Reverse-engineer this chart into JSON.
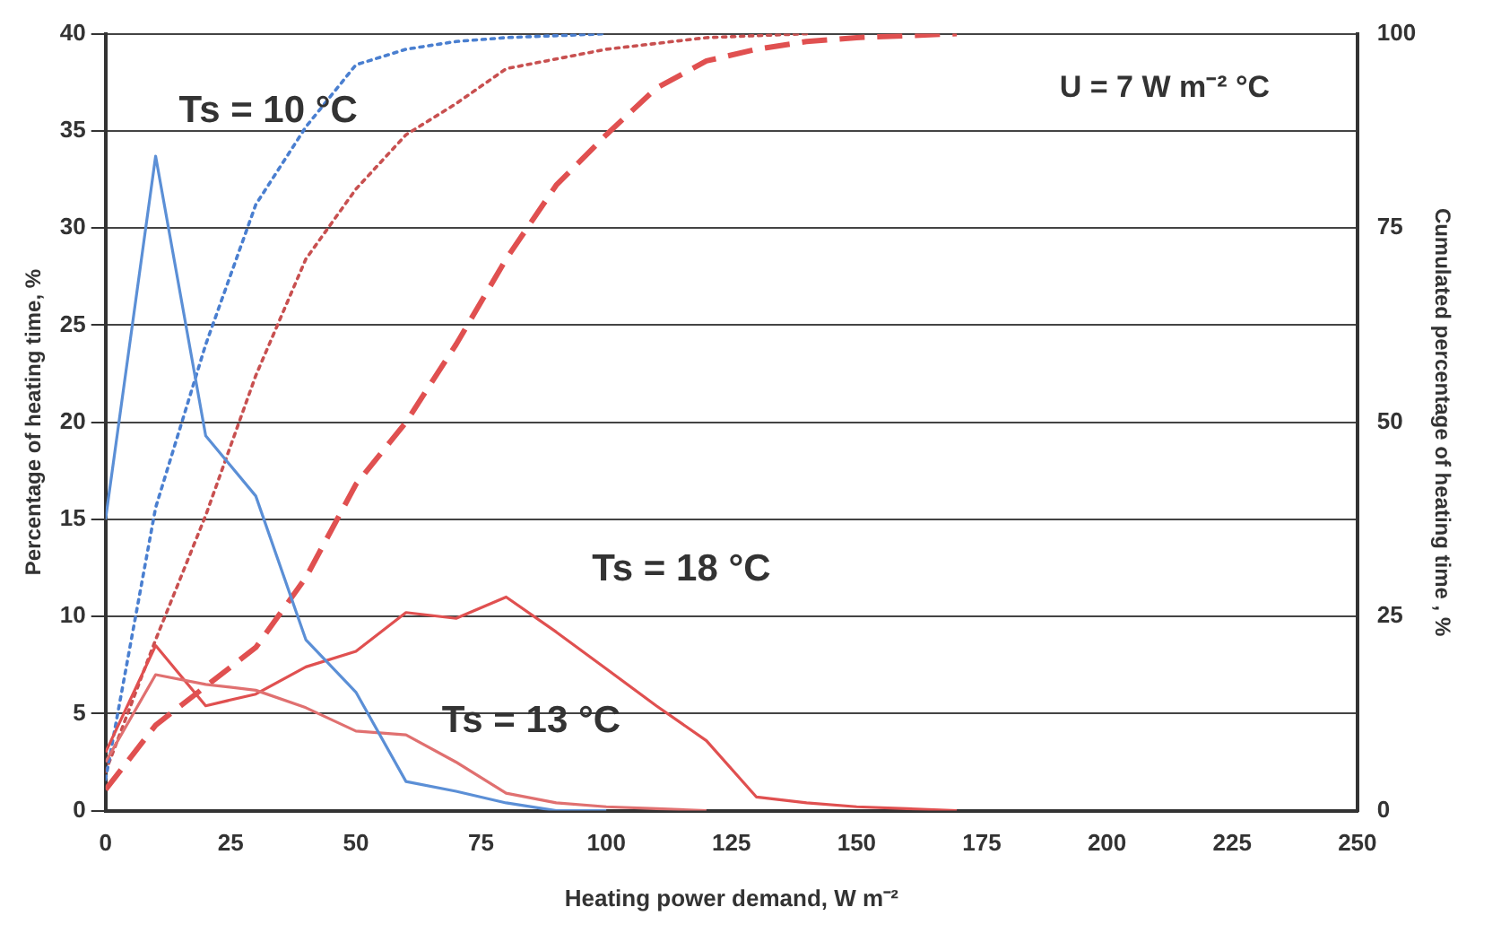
{
  "chart_data": {
    "type": "line",
    "xlabel": "Heating power demand, W m⁻²",
    "ylabel": "Percentage of heating time, %",
    "y2label": "Cumulated percentage of heating time , %",
    "xlim": [
      0,
      250
    ],
    "xticks": [
      0,
      25,
      50,
      75,
      100,
      125,
      150,
      175,
      200,
      225,
      250
    ],
    "ylim": [
      0,
      40
    ],
    "yticks": [
      0,
      5,
      10,
      15,
      20,
      25,
      30,
      35,
      40
    ],
    "y2lim": [
      0,
      100
    ],
    "y2ticks": [
      0,
      25,
      50,
      75,
      100
    ],
    "grid": "y",
    "legend": false,
    "marker": "none",
    "annotations": [
      "Ts = 10 °C",
      "Ts = 18 °C",
      "Ts = 13 °C",
      "U = 7 W m⁻² °C"
    ],
    "series": [
      {
        "color": "#5b8fd6",
        "line_style": "solid",
        "x": [
          0,
          10,
          20,
          30,
          40,
          50,
          60,
          70,
          80,
          90,
          100
        ],
        "values": [
          15,
          33.7,
          19.3,
          16.2,
          8.8,
          6.1,
          1.5,
          1,
          0.4,
          0,
          0
        ]
      },
      {
        "color": "#e07070",
        "line_style": "solid",
        "x": [
          0,
          10,
          20,
          30,
          40,
          50,
          60,
          70,
          80,
          90,
          100,
          110,
          120
        ],
        "values": [
          2.5,
          7,
          6.5,
          6.2,
          5.3,
          4.1,
          3.9,
          2.5,
          0.9,
          0.4,
          0.2,
          0.1,
          0
        ]
      },
      {
        "color": "#e05050",
        "line_style": "solid",
        "x": [
          0,
          10,
          20,
          30,
          40,
          50,
          60,
          70,
          80,
          90,
          100,
          110,
          120,
          130,
          140,
          150,
          160,
          170
        ],
        "values": [
          3,
          8.5,
          5.4,
          6,
          7.4,
          8.2,
          10.2,
          9.9,
          11,
          9.2,
          7.3,
          5.4,
          3.6,
          0.7,
          0.4,
          0.2,
          0.1,
          0
        ]
      },
      {
        "color": "#4a7fd0",
        "line_style": "dotted",
        "axis": "y2",
        "x": [
          0,
          10,
          20,
          30,
          40,
          50,
          60,
          70,
          80,
          100
        ],
        "values": [
          4,
          39,
          60,
          78,
          88,
          96,
          98,
          99,
          99.5,
          100
        ]
      },
      {
        "color": "#c85050",
        "line_style": "dotted",
        "axis": "y2",
        "x": [
          0,
          10,
          20,
          30,
          40,
          50,
          60,
          70,
          80,
          100,
          120,
          140
        ],
        "values": [
          5,
          22,
          38,
          56,
          71,
          80,
          87,
          91,
          95.5,
          98,
          99.5,
          100
        ]
      },
      {
        "color": "#e05050",
        "line_style": "dashed",
        "axis": "y2",
        "x": [
          0,
          10,
          20,
          30,
          40,
          50,
          60,
          70,
          80,
          90,
          100,
          110,
          120,
          130,
          140,
          150,
          170
        ],
        "values": [
          2.7,
          11,
          16,
          21,
          30,
          42,
          50,
          60,
          71,
          80.5,
          87,
          93,
          96.5,
          98,
          99,
          99.5,
          100
        ]
      }
    ]
  }
}
